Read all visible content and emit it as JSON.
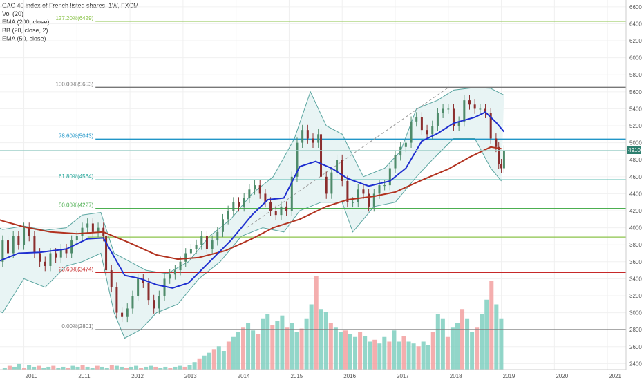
{
  "legend": {
    "title": "CAC 40 index of French listed shares, 1W, FXCM",
    "vol": "Vol (20)",
    "ema200": "EMA (200, close)",
    "bb": "BB (20, close, 2)",
    "ema50": "EMA (50, close)"
  },
  "current_price_label": "4910",
  "colors": {
    "ema200": "#b2321f",
    "ema50": "#1f2fd0",
    "bb": "#5aa5a0",
    "bb_fill": "#e8f4f4",
    "candle_up": "#4e8b6a",
    "candle_down": "#8b2e2e",
    "vol_up": "#7fcfbf",
    "vol_down": "#f2a0a0",
    "current_price": "#2d7f6f"
  },
  "chart_data": {
    "type": "candlestick",
    "title": "CAC 40 index of French listed shares, 1W, FXCM",
    "y_axis_ticks": [
      6600,
      6400,
      6200,
      6000,
      5800,
      5600,
      5400,
      5200,
      5000,
      4800,
      4600,
      4400,
      4200,
      4000,
      3800,
      3600,
      3400,
      3200,
      3000,
      2800,
      2600,
      2400
    ],
    "x_axis_ticks": [
      "2010",
      "2011",
      "2012",
      "2013",
      "2014",
      "2015",
      "2016",
      "2017",
      "2018",
      "2019",
      "2020",
      "2021"
    ],
    "ylim": [
      2330,
      6680
    ],
    "fib_levels": [
      {
        "label": "127.20%(6429)",
        "value": 6429,
        "color": "#8bc34a",
        "label_side": "left"
      },
      {
        "label": "100.00%(5653)",
        "value": 5653,
        "color": "#777777",
        "label_side": "left"
      },
      {
        "label": "78.60%(5043)",
        "value": 5043,
        "color": "#2196c8",
        "label_side": "left"
      },
      {
        "label": "61.80%(4564)",
        "value": 4564,
        "color": "#26a69a",
        "label_side": "left"
      },
      {
        "label": "50.00%(4227)",
        "value": 4227,
        "color": "#4caf50",
        "label_side": "left"
      },
      {
        "label": "",
        "value": 3890,
        "color": "#8bc34a",
        "label_side": "left"
      },
      {
        "label": "23.60%(3474)",
        "value": 3474,
        "color": "#c62828",
        "label_side": "left"
      },
      {
        "label": "0.00%(2801)",
        "value": 2801,
        "color": "#777777",
        "label_side": "left"
      }
    ],
    "current_price": 4910,
    "ema200_points": [
      [
        2009.2,
        4170
      ],
      [
        2009.6,
        4080
      ],
      [
        2010.0,
        4010
      ],
      [
        2010.5,
        3950
      ],
      [
        2011.0,
        3930
      ],
      [
        2011.5,
        3950
      ],
      [
        2012.0,
        3820
      ],
      [
        2012.5,
        3680
      ],
      [
        2012.9,
        3630
      ],
      [
        2013.3,
        3650
      ],
      [
        2013.8,
        3730
      ],
      [
        2014.3,
        3870
      ],
      [
        2014.7,
        4000
      ],
      [
        2015.2,
        4100
      ],
      [
        2015.7,
        4250
      ],
      [
        2016.1,
        4330
      ],
      [
        2016.6,
        4370
      ],
      [
        2017.0,
        4420
      ],
      [
        2017.5,
        4560
      ],
      [
        2018.0,
        4690
      ],
      [
        2018.4,
        4830
      ],
      [
        2018.8,
        4950
      ],
      [
        2019.0,
        4930
      ]
    ],
    "ema50_points": [
      [
        2009.2,
        3510
      ],
      [
        2009.5,
        3600
      ],
      [
        2009.9,
        3700
      ],
      [
        2010.3,
        3710
      ],
      [
        2010.8,
        3750
      ],
      [
        2011.2,
        3870
      ],
      [
        2011.5,
        3880
      ],
      [
        2011.9,
        3440
      ],
      [
        2012.2,
        3400
      ],
      [
        2012.5,
        3330
      ],
      [
        2012.8,
        3290
      ],
      [
        2013.1,
        3350
      ],
      [
        2013.5,
        3600
      ],
      [
        2013.9,
        3850
      ],
      [
        2014.3,
        4150
      ],
      [
        2014.6,
        4330
      ],
      [
        2014.9,
        4350
      ],
      [
        2015.2,
        4720
      ],
      [
        2015.5,
        4780
      ],
      [
        2015.8,
        4700
      ],
      [
        2016.1,
        4580
      ],
      [
        2016.5,
        4490
      ],
      [
        2016.9,
        4550
      ],
      [
        2017.2,
        4700
      ],
      [
        2017.5,
        5020
      ],
      [
        2017.8,
        5110
      ],
      [
        2018.1,
        5230
      ],
      [
        2018.5,
        5300
      ],
      [
        2018.7,
        5360
      ],
      [
        2018.9,
        5240
      ],
      [
        2019.05,
        5130
      ]
    ],
    "bb_upper_points": [
      [
        2009.2,
        4100
      ],
      [
        2009.6,
        3980
      ],
      [
        2010.0,
        4020
      ],
      [
        2010.4,
        3970
      ],
      [
        2010.8,
        4000
      ],
      [
        2011.1,
        4150
      ],
      [
        2011.45,
        4180
      ],
      [
        2011.7,
        3700
      ],
      [
        2012.0,
        3600
      ],
      [
        2012.3,
        3500
      ],
      [
        2012.7,
        3460
      ],
      [
        2013.1,
        3600
      ],
      [
        2013.5,
        3900
      ],
      [
        2013.9,
        4100
      ],
      [
        2014.3,
        4400
      ],
      [
        2014.7,
        4600
      ],
      [
        2015.1,
        5050
      ],
      [
        2015.4,
        5600
      ],
      [
        2015.7,
        5200
      ],
      [
        2016.0,
        5100
      ],
      [
        2016.4,
        4600
      ],
      [
        2016.8,
        4700
      ],
      [
        2017.1,
        4900
      ],
      [
        2017.4,
        5400
      ],
      [
        2017.8,
        5500
      ],
      [
        2018.1,
        5620
      ],
      [
        2018.5,
        5650
      ],
      [
        2018.8,
        5640
      ],
      [
        2019.05,
        5560
      ]
    ],
    "bb_lower_points": [
      [
        2009.2,
        3100
      ],
      [
        2009.6,
        3000
      ],
      [
        2010.0,
        3400
      ],
      [
        2010.4,
        3300
      ],
      [
        2010.8,
        3550
      ],
      [
        2011.1,
        3600
      ],
      [
        2011.45,
        3700
      ],
      [
        2011.7,
        3000
      ],
      [
        2011.9,
        2700
      ],
      [
        2012.2,
        2800
      ],
      [
        2012.5,
        3000
      ],
      [
        2012.9,
        3100
      ],
      [
        2013.3,
        3400
      ],
      [
        2013.7,
        3600
      ],
      [
        2014.1,
        3900
      ],
      [
        2014.5,
        4000
      ],
      [
        2014.9,
        3950
      ],
      [
        2015.2,
        4200
      ],
      [
        2015.6,
        4300
      ],
      [
        2016.0,
        4300
      ],
      [
        2016.2,
        3950
      ],
      [
        2016.6,
        4250
      ],
      [
        2017.0,
        4300
      ],
      [
        2017.4,
        4600
      ],
      [
        2017.7,
        4800
      ],
      [
        2018.1,
        5050
      ],
      [
        2018.5,
        5050
      ],
      [
        2018.8,
        4700
      ],
      [
        2019.0,
        4550
      ]
    ],
    "close_points": [
      [
        2009.2,
        3450
      ],
      [
        2009.3,
        3550
      ],
      [
        2009.4,
        3750
      ],
      [
        2009.5,
        3600
      ],
      [
        2009.6,
        3850
      ],
      [
        2009.7,
        3700
      ],
      [
        2009.8,
        3900
      ],
      [
        2009.9,
        3800
      ],
      [
        2010.0,
        4000
      ],
      [
        2010.1,
        3900
      ],
      [
        2010.2,
        3700
      ],
      [
        2010.3,
        3600
      ],
      [
        2010.4,
        3550
      ],
      [
        2010.5,
        3700
      ],
      [
        2010.6,
        3650
      ],
      [
        2010.7,
        3750
      ],
      [
        2010.8,
        3700
      ],
      [
        2010.9,
        3850
      ],
      [
        2011.0,
        3900
      ],
      [
        2011.1,
        4000
      ],
      [
        2011.2,
        4050
      ],
      [
        2011.3,
        3950
      ],
      [
        2011.4,
        4000
      ],
      [
        2011.5,
        3900
      ],
      [
        2011.55,
        3500
      ],
      [
        2011.65,
        3300
      ],
      [
        2011.75,
        3000
      ],
      [
        2011.85,
        2950
      ],
      [
        2011.95,
        3050
      ],
      [
        2012.05,
        3200
      ],
      [
        2012.15,
        3400
      ],
      [
        2012.25,
        3350
      ],
      [
        2012.35,
        3150
      ],
      [
        2012.45,
        3050
      ],
      [
        2012.55,
        3200
      ],
      [
        2012.65,
        3400
      ],
      [
        2012.75,
        3450
      ],
      [
        2012.85,
        3500
      ],
      [
        2012.95,
        3600
      ],
      [
        2013.05,
        3700
      ],
      [
        2013.15,
        3750
      ],
      [
        2013.25,
        3800
      ],
      [
        2013.35,
        3900
      ],
      [
        2013.45,
        3750
      ],
      [
        2013.55,
        3850
      ],
      [
        2013.65,
        3950
      ],
      [
        2013.75,
        4100
      ],
      [
        2013.85,
        4200
      ],
      [
        2013.95,
        4300
      ],
      [
        2014.05,
        4250
      ],
      [
        2014.15,
        4350
      ],
      [
        2014.25,
        4450
      ],
      [
        2014.35,
        4500
      ],
      [
        2014.45,
        4400
      ],
      [
        2014.55,
        4300
      ],
      [
        2014.65,
        4200
      ],
      [
        2014.75,
        4150
      ],
      [
        2014.85,
        4250
      ],
      [
        2014.95,
        4200
      ],
      [
        2015.05,
        4600
      ],
      [
        2015.15,
        5000
      ],
      [
        2015.25,
        5150
      ],
      [
        2015.35,
        5050
      ],
      [
        2015.45,
        5000
      ],
      [
        2015.55,
        5100
      ],
      [
        2015.6,
        4600
      ],
      [
        2015.7,
        4400
      ],
      [
        2015.8,
        4650
      ],
      [
        2015.9,
        4800
      ],
      [
        2016.0,
        4550
      ],
      [
        2016.1,
        4300
      ],
      [
        2016.2,
        4300
      ],
      [
        2016.3,
        4450
      ],
      [
        2016.4,
        4400
      ],
      [
        2016.5,
        4250
      ],
      [
        2016.6,
        4400
      ],
      [
        2016.7,
        4500
      ],
      [
        2016.8,
        4500
      ],
      [
        2016.9,
        4700
      ],
      [
        2017.0,
        4850
      ],
      [
        2017.1,
        4950
      ],
      [
        2017.2,
        5000
      ],
      [
        2017.3,
        5250
      ],
      [
        2017.4,
        5300
      ],
      [
        2017.5,
        5150
      ],
      [
        2017.6,
        5100
      ],
      [
        2017.7,
        5200
      ],
      [
        2017.8,
        5350
      ],
      [
        2017.9,
        5400
      ],
      [
        2018.0,
        5400
      ],
      [
        2018.1,
        5200
      ],
      [
        2018.2,
        5250
      ],
      [
        2018.3,
        5500
      ],
      [
        2018.4,
        5450
      ],
      [
        2018.5,
        5400
      ],
      [
        2018.6,
        5400
      ],
      [
        2018.7,
        5350
      ],
      [
        2018.8,
        5050
      ],
      [
        2018.9,
        4950
      ],
      [
        2018.95,
        4750
      ],
      [
        2019.0,
        4700
      ],
      [
        2019.05,
        4910
      ]
    ],
    "volume_heights": [
      0.02,
      0.04,
      0.03,
      0.06,
      0.02,
      0.05,
      0.03,
      0.04,
      0.02,
      0.03,
      0.04,
      0.02,
      0.03,
      0.02,
      0.04,
      0.03,
      0.05,
      0.03,
      0.02,
      0.04,
      0.03,
      0.02,
      0.05,
      0.04,
      0.03,
      0.02,
      0.03,
      0.04,
      0.02,
      0.03,
      0.04,
      0.03,
      0.02,
      0.03,
      0.02,
      0.03,
      0.04,
      0.03,
      0.05,
      0.08,
      0.12,
      0.15,
      0.18,
      0.22,
      0.25,
      0.2,
      0.3,
      0.35,
      0.4,
      0.45,
      0.5,
      0.42,
      0.38,
      0.55,
      0.6,
      0.48,
      0.52,
      0.58,
      0.45,
      0.5,
      0.4,
      0.44,
      0.55,
      0.7,
      1.0,
      0.65,
      0.62,
      0.5,
      0.45,
      0.4,
      0.42,
      0.38,
      0.35,
      0.4,
      0.36,
      0.3,
      0.32,
      0.28,
      0.35,
      0.3,
      0.42,
      0.3,
      0.36,
      0.3,
      0.28,
      0.25,
      0.3,
      0.26,
      0.4,
      0.6,
      0.55,
      0.35,
      0.45,
      0.5,
      0.65,
      0.55,
      0.4,
      0.45,
      0.6,
      0.75,
      0.95,
      0.7,
      0.55
    ]
  }
}
